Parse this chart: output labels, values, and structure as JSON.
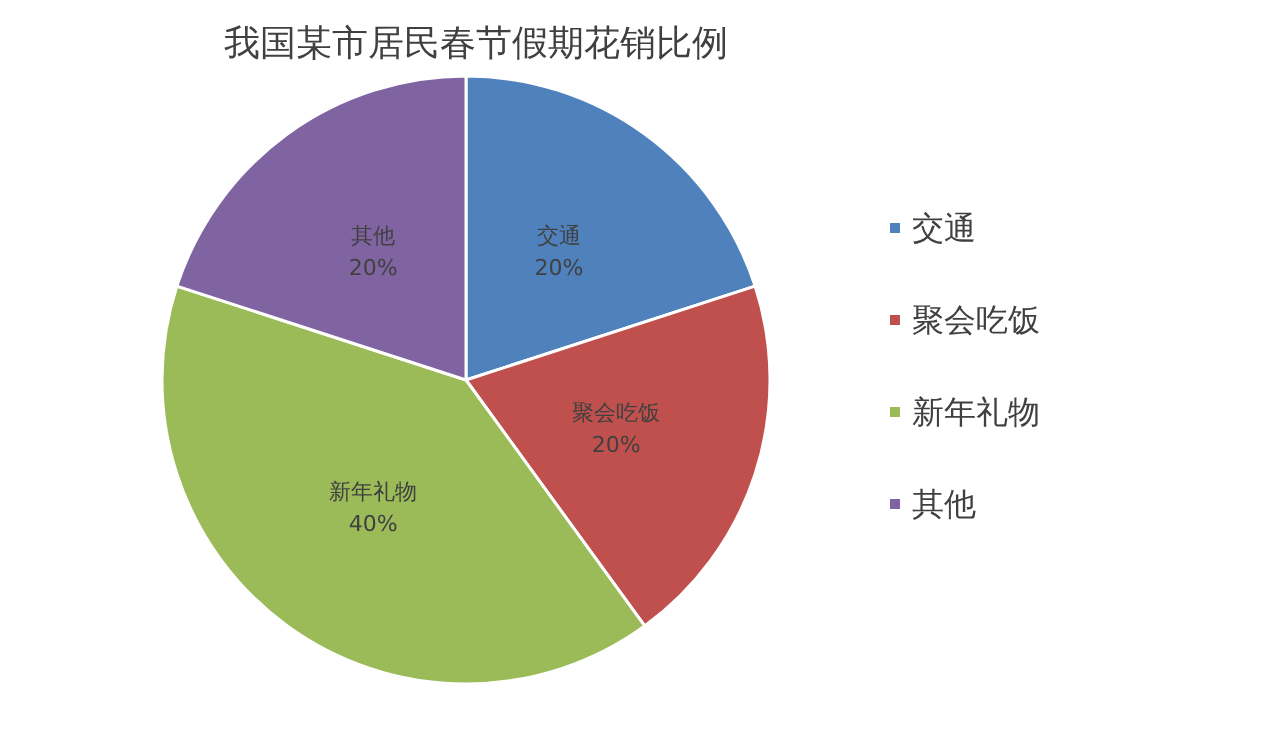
{
  "chart_data": {
    "type": "pie",
    "title": "我国某市居民春节假期花销比例",
    "categories": [
      "交通",
      "聚会吃饭",
      "新年礼物",
      "其他"
    ],
    "values": [
      20,
      20,
      40,
      20
    ],
    "colors": [
      "#4f81bd",
      "#c0504d",
      "#9bbb59",
      "#8064a2"
    ],
    "value_labels": [
      "20%",
      "20%",
      "40%",
      "20%"
    ],
    "legend": "right"
  }
}
